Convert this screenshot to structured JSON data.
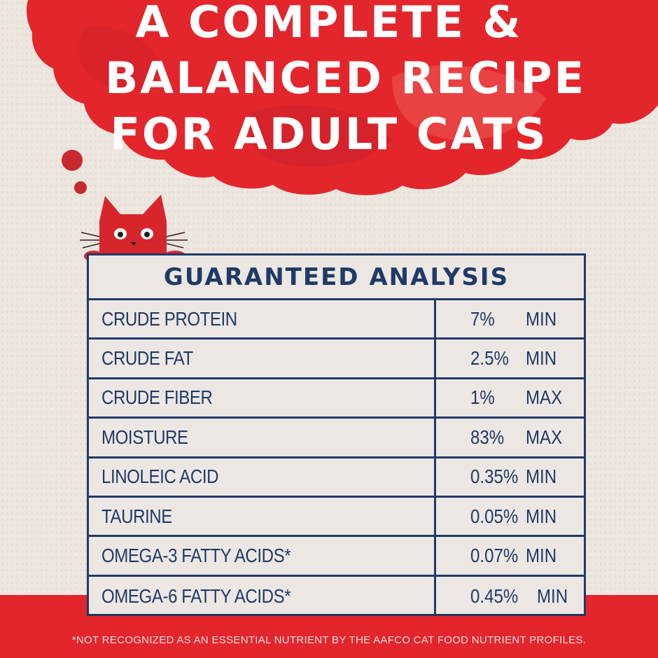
{
  "headline": {
    "line1": "A COMPLETE &",
    "line2": "BALANCED RECIPE",
    "line3": "FOR ADULT CATS"
  },
  "table": {
    "title": "GUARANTEED ANALYSIS",
    "rows": [
      {
        "name": "CRUDE PROTEIN",
        "value": "7%",
        "qualifier": "MIN"
      },
      {
        "name": "CRUDE FAT",
        "value": "2.5%",
        "qualifier": "MIN"
      },
      {
        "name": "CRUDE FIBER",
        "value": "1%",
        "qualifier": "MAX"
      },
      {
        "name": "MOISTURE",
        "value": "83%",
        "qualifier": "MAX"
      },
      {
        "name": "LINOLEIC ACID",
        "value": "0.35%",
        "qualifier": "MIN"
      },
      {
        "name": "TAURINE",
        "value": "0.05%",
        "qualifier": "MIN"
      },
      {
        "name": "OMEGA-3 FATTY ACIDS*",
        "value": "0.07%",
        "qualifier": "MIN"
      },
      {
        "name": "OMEGA-6 FATTY ACIDS*",
        "value": "0.45%",
        "qualifier": "MIN"
      }
    ]
  },
  "footnote": "*NOT RECOGNIZED AS AN ESSENTIAL NUTRIENT BY THE AAFCO CAT FOOD NUTRIENT PROFILES.",
  "colors": {
    "brand_red": "#e2262c",
    "navy": "#1f3a66",
    "paper": "#ece6df"
  },
  "icons": {
    "cat": "cat-peeking-icon",
    "thought": "thought-bubble-icon"
  }
}
